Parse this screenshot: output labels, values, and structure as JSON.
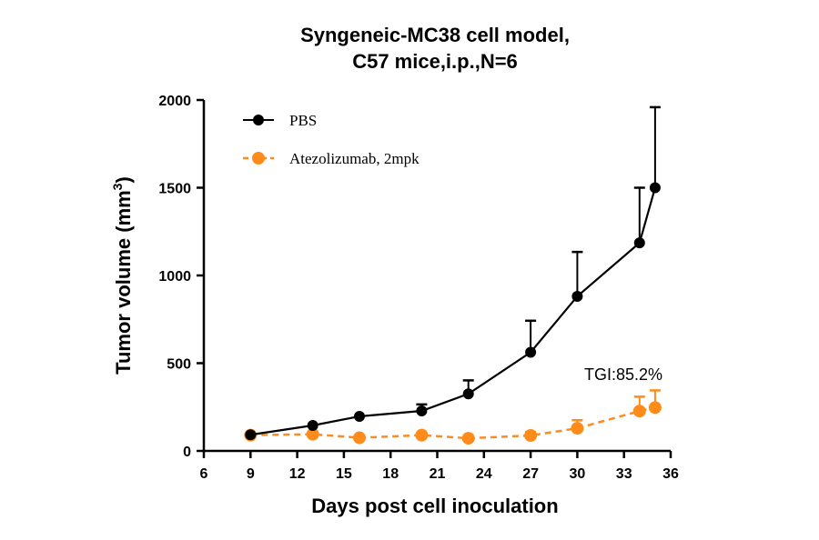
{
  "chart_data": {
    "type": "line",
    "title": [
      "Syngeneic-MC38 cell model,",
      "C57 mice,i.p.,N=6"
    ],
    "xlabel": "Days post cell inoculation",
    "ylabel": "Tumor volume (mm",
    "ylabel_sup": "3",
    "ylabel_close": ")",
    "xlim": [
      6,
      36
    ],
    "ylim": [
      0,
      2000
    ],
    "xticks": [
      6,
      9,
      12,
      15,
      18,
      21,
      24,
      27,
      30,
      33,
      36
    ],
    "yticks": [
      0,
      500,
      1000,
      1500,
      2000
    ],
    "grid": false,
    "legend_position": "top-left",
    "annotation": "TGI:85.2%",
    "series": [
      {
        "name": "PBS",
        "color": "#000000",
        "style": "solid",
        "x": [
          9,
          13,
          16,
          20,
          23,
          27,
          30,
          34,
          35
        ],
        "y": [
          92,
          145,
          197,
          228,
          325,
          562,
          881,
          1186,
          1500
        ],
        "err_upper": [
          100,
          150,
          205,
          265,
          402,
          742,
          1134,
          1500,
          1959
        ]
      },
      {
        "name": "Atezolizumab, 2mpk",
        "color": "#FF8C1A",
        "style": "dashed",
        "x": [
          9,
          13,
          16,
          20,
          23,
          27,
          30,
          34,
          35
        ],
        "y": [
          90,
          95,
          75,
          90,
          72,
          88,
          129,
          227,
          247
        ],
        "err_upper": [
          95,
          100,
          82,
          98,
          78,
          108,
          175,
          309,
          345
        ]
      }
    ]
  }
}
